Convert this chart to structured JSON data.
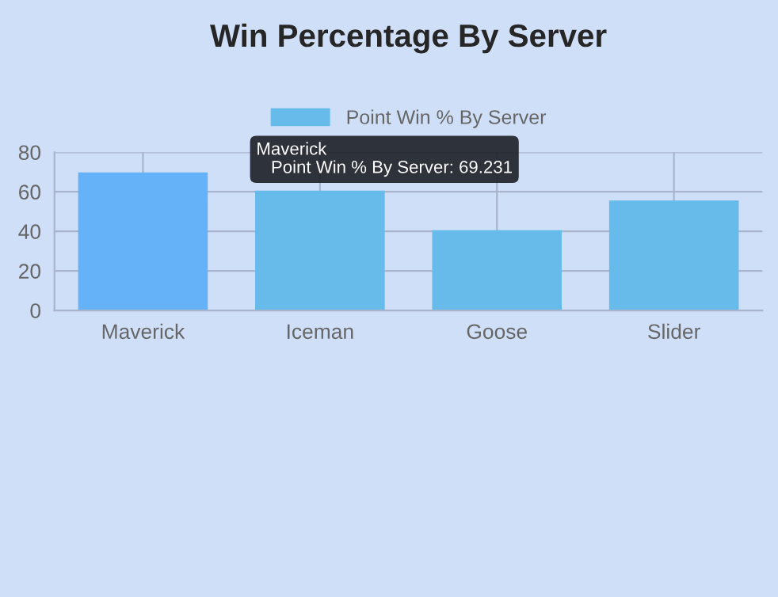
{
  "chart_data": {
    "type": "bar",
    "title": "Win Percentage By Server",
    "categories": [
      "Maverick",
      "Iceman",
      "Goose",
      "Slider"
    ],
    "series": [
      {
        "name": "Point Win % By Server",
        "colors": [
          "#66b2f8",
          "#67bbeb",
          "#67bbeb",
          "#67bbeb"
        ],
        "color": "#67bbeb",
        "values": [
          69.231,
          60,
          40,
          55
        ]
      }
    ],
    "ylim": [
      0,
      80
    ],
    "yticks": [
      0,
      20,
      40,
      60,
      80
    ],
    "grid": true,
    "legend": "top",
    "annotations": [
      "Maverick\nPoint Win % By Server: 69.231"
    ]
  }
}
